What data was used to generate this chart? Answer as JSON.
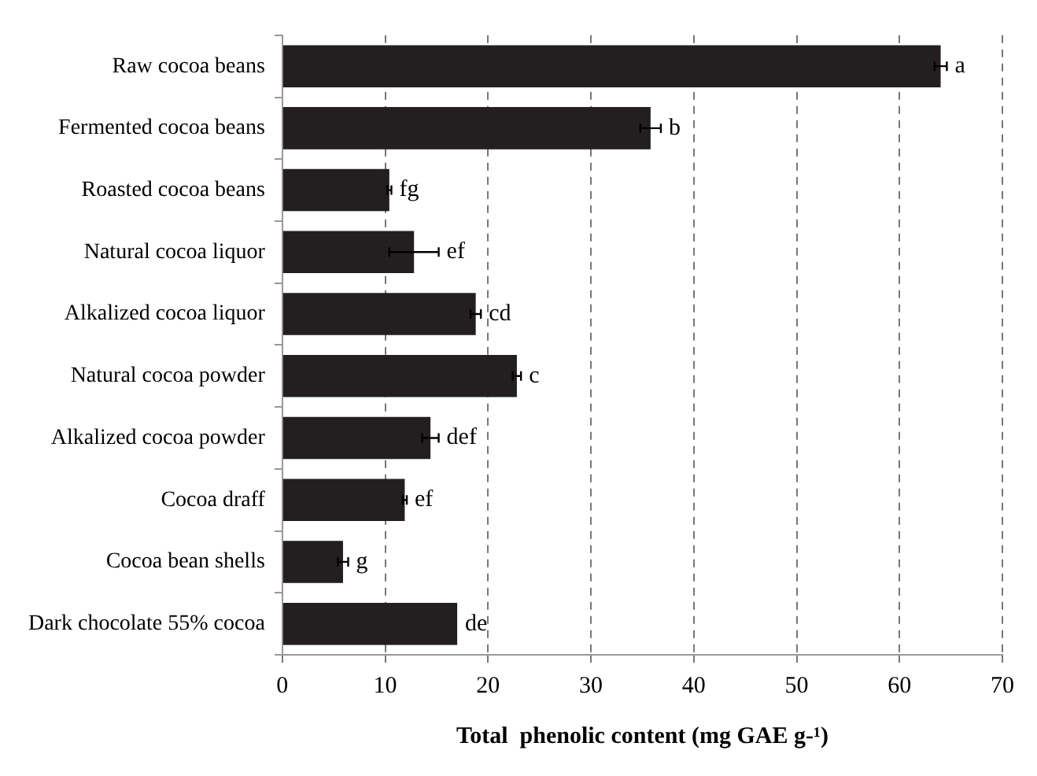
{
  "chart_data": {
    "type": "bar",
    "orientation": "horizontal",
    "xlabel": "Total  phenolic content (mg GAE g-¹)",
    "categories": [
      "Raw cocoa beans",
      "Fermented cocoa beans",
      "Roasted cocoa beans",
      "Natural cocoa liquor",
      "Alkalized cocoa liquor",
      "Natural cocoa powder",
      "Alkalized cocoa powder",
      "Cocoa draff",
      "Cocoa bean shells",
      "Dark chocolate 55% cocoa"
    ],
    "values": [
      64.0,
      35.8,
      10.4,
      12.8,
      18.8,
      22.8,
      14.4,
      11.9,
      5.9,
      17.0
    ],
    "errors": [
      0.6,
      1.0,
      0.2,
      2.4,
      0.5,
      0.4,
      0.8,
      0.2,
      0.5,
      null
    ],
    "color": "#231f20",
    "xlim": [
      0,
      70
    ],
    "xticks": [
      0,
      10,
      20,
      30,
      40,
      50,
      60,
      70
    ],
    "grid": "x",
    "legend": false,
    "annotations": [
      {
        "text": "a",
        "x": 64.6,
        "y": "Raw cocoa beans"
      },
      {
        "text": "b",
        "x": 36.8,
        "y": "Fermented cocoa beans"
      },
      {
        "text": "fg",
        "x": 10.6,
        "y": "Roasted cocoa beans"
      },
      {
        "text": "ef",
        "x": 15.2,
        "y": "Natural cocoa liquor"
      },
      {
        "text": "cd",
        "x": 19.3,
        "y": "Alkalized cocoa liquor"
      },
      {
        "text": "c",
        "x": 23.2,
        "y": "Natural cocoa powder"
      },
      {
        "text": "def",
        "x": 15.2,
        "y": "Alkalized cocoa powder"
      },
      {
        "text": "ef",
        "x": 12.1,
        "y": "Cocoa draff"
      },
      {
        "text": "g",
        "x": 6.4,
        "y": "Cocoa bean shells"
      },
      {
        "text": "de",
        "x": 17.0,
        "y": "Dark chocolate 55% cocoa"
      }
    ]
  }
}
